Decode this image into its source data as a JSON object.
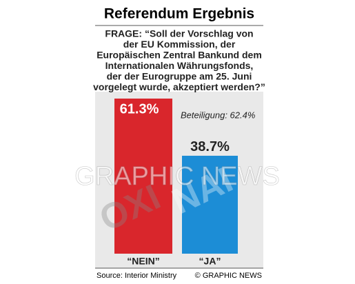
{
  "chart_data": {
    "type": "bar",
    "title": "Referendum Ergebnis",
    "question_lines": [
      "FRAGE: “Soll der Vorschlag von",
      "der EU Kommission, der",
      "Europäischen Zentral Bankund dem",
      "Internationalen Währungsfonds,",
      "der der Eurogruppe am 25. Juni",
      "vorgelegt wurde, akzeptiert werden?”"
    ],
    "categories": [
      "“NEIN”",
      "“JA”"
    ],
    "values": [
      61.3,
      38.7
    ],
    "value_labels": [
      "61.3%",
      "38.7%"
    ],
    "colors": [
      "#d9262c",
      "#1c8dd6"
    ],
    "annotation": "Beteiligung: 62.4%",
    "background_words": [
      "OXI",
      "NAI"
    ],
    "watermark": "GRAPHIC NEWS",
    "source": "Source: Interior Ministry",
    "credit": "© GRAPHIC NEWS"
  }
}
